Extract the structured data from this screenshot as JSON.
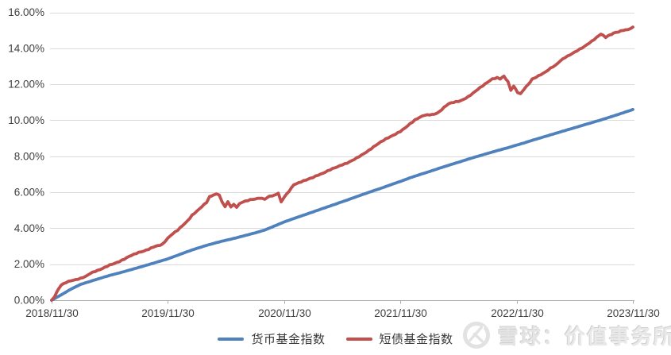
{
  "watermark": {
    "brand": "雪球：",
    "name": "价值事务所",
    "logo_icon": "xueqiu-circle-logo"
  },
  "colors": {
    "background": "#FFFFFF",
    "grid": "#DADADA",
    "axis": "#ABABAB",
    "tick_text": "#3F3F3F",
    "money_fund_blue": "#4F81BD",
    "short_bond_red": "#C0504D",
    "watermark_gray": "#E4E4E4"
  },
  "chart_data": {
    "type": "line",
    "title": "",
    "xlabel": "",
    "ylabel": "",
    "grid": "horizontal",
    "legend_position": "bottom-center",
    "y_axis": {
      "min": 0,
      "max": 16,
      "step": 2,
      "unit": "%",
      "ticks": [
        "0.00%",
        "2.00%",
        "4.00%",
        "6.00%",
        "8.00%",
        "10.00%",
        "12.00%",
        "14.00%",
        "16.00%"
      ]
    },
    "x_axis": {
      "unit": "months_since_2018-11-30",
      "total_months": 60,
      "tick_positions": [
        0,
        12,
        24,
        36,
        48,
        60
      ],
      "ticks": [
        "2018/11/30",
        "2019/11/30",
        "2020/11/30",
        "2021/11/30",
        "2022/11/30",
        "2023/11/30"
      ]
    },
    "legend": [
      "货币基金指数",
      "短债基金指数"
    ],
    "series": [
      {
        "id": "money-fund-index",
        "name": "货币基金指数",
        "color": "#4F81BD",
        "points": [
          [
            0,
            0.0
          ],
          [
            1,
            0.3
          ],
          [
            2,
            0.62
          ],
          [
            3,
            0.88
          ],
          [
            4,
            1.05
          ],
          [
            5,
            1.22
          ],
          [
            6,
            1.38
          ],
          [
            7,
            1.52
          ],
          [
            8,
            1.67
          ],
          [
            9,
            1.82
          ],
          [
            10,
            1.98
          ],
          [
            11,
            2.14
          ],
          [
            12,
            2.3
          ],
          [
            13,
            2.5
          ],
          [
            14,
            2.7
          ],
          [
            15,
            2.88
          ],
          [
            16,
            3.05
          ],
          [
            17,
            3.2
          ],
          [
            18,
            3.33
          ],
          [
            19,
            3.46
          ],
          [
            20,
            3.6
          ],
          [
            21,
            3.74
          ],
          [
            22,
            3.9
          ],
          [
            23,
            4.12
          ],
          [
            24,
            4.35
          ],
          [
            25,
            4.54
          ],
          [
            26,
            4.72
          ],
          [
            27,
            4.91
          ],
          [
            28,
            5.1
          ],
          [
            29,
            5.28
          ],
          [
            30,
            5.47
          ],
          [
            31,
            5.66
          ],
          [
            32,
            5.85
          ],
          [
            33,
            6.04
          ],
          [
            34,
            6.22
          ],
          [
            35,
            6.41
          ],
          [
            36,
            6.6
          ],
          [
            37,
            6.8
          ],
          [
            38,
            6.98
          ],
          [
            39,
            7.15
          ],
          [
            40,
            7.33
          ],
          [
            41,
            7.5
          ],
          [
            42,
            7.67
          ],
          [
            43,
            7.84
          ],
          [
            44,
            8.0
          ],
          [
            45,
            8.16
          ],
          [
            46,
            8.31
          ],
          [
            47,
            8.46
          ],
          [
            48,
            8.62
          ],
          [
            49,
            8.78
          ],
          [
            50,
            8.95
          ],
          [
            51,
            9.11
          ],
          [
            52,
            9.27
          ],
          [
            53,
            9.43
          ],
          [
            54,
            9.59
          ],
          [
            55,
            9.75
          ],
          [
            56,
            9.91
          ],
          [
            57,
            10.07
          ],
          [
            58,
            10.24
          ],
          [
            59,
            10.42
          ],
          [
            60,
            10.6
          ]
        ]
      },
      {
        "id": "short-bond-fund-index",
        "name": "短债基金指数",
        "color": "#C0504D",
        "points": [
          [
            0,
            0.0
          ],
          [
            0.3,
            0.2
          ],
          [
            0.7,
            0.62
          ],
          [
            1,
            0.85
          ],
          [
            1.5,
            1.0
          ],
          [
            2,
            1.1
          ],
          [
            2.5,
            1.15
          ],
          [
            3,
            1.22
          ],
          [
            3.5,
            1.32
          ],
          [
            4,
            1.5
          ],
          [
            4.5,
            1.62
          ],
          [
            5,
            1.72
          ],
          [
            5.5,
            1.84
          ],
          [
            6,
            1.96
          ],
          [
            6.5,
            2.05
          ],
          [
            7,
            2.16
          ],
          [
            7.5,
            2.3
          ],
          [
            8,
            2.45
          ],
          [
            8.5,
            2.56
          ],
          [
            9,
            2.66
          ],
          [
            9.5,
            2.73
          ],
          [
            10,
            2.84
          ],
          [
            10.5,
            2.97
          ],
          [
            11,
            3.05
          ],
          [
            11.4,
            3.08
          ],
          [
            12,
            3.45
          ],
          [
            12.5,
            3.7
          ],
          [
            13,
            3.9
          ],
          [
            13.5,
            4.15
          ],
          [
            14,
            4.4
          ],
          [
            14.5,
            4.72
          ],
          [
            15,
            4.95
          ],
          [
            15.5,
            5.2
          ],
          [
            16,
            5.45
          ],
          [
            16.3,
            5.75
          ],
          [
            16.7,
            5.85
          ],
          [
            17,
            5.9
          ],
          [
            17.3,
            5.87
          ],
          [
            17.6,
            5.45
          ],
          [
            17.9,
            5.2
          ],
          [
            18.2,
            5.45
          ],
          [
            18.5,
            5.2
          ],
          [
            18.8,
            5.32
          ],
          [
            19.1,
            5.18
          ],
          [
            19.4,
            5.35
          ],
          [
            19.7,
            5.45
          ],
          [
            20,
            5.5
          ],
          [
            20.5,
            5.58
          ],
          [
            21,
            5.62
          ],
          [
            21.5,
            5.68
          ],
          [
            22,
            5.62
          ],
          [
            22.5,
            5.78
          ],
          [
            23,
            5.82
          ],
          [
            23.4,
            5.95
          ],
          [
            23.7,
            5.45
          ],
          [
            24,
            5.72
          ],
          [
            24.5,
            6.05
          ],
          [
            25,
            6.42
          ],
          [
            25.5,
            6.52
          ],
          [
            26,
            6.62
          ],
          [
            26.5,
            6.72
          ],
          [
            27,
            6.82
          ],
          [
            27.5,
            6.95
          ],
          [
            28,
            7.05
          ],
          [
            28.5,
            7.18
          ],
          [
            29,
            7.3
          ],
          [
            29.5,
            7.4
          ],
          [
            30,
            7.52
          ],
          [
            30.5,
            7.62
          ],
          [
            31,
            7.75
          ],
          [
            31.5,
            7.9
          ],
          [
            32,
            8.05
          ],
          [
            32.5,
            8.22
          ],
          [
            33,
            8.42
          ],
          [
            33.5,
            8.62
          ],
          [
            34,
            8.8
          ],
          [
            34.5,
            8.95
          ],
          [
            35,
            9.08
          ],
          [
            35.5,
            9.22
          ],
          [
            36,
            9.38
          ],
          [
            36.5,
            9.58
          ],
          [
            37,
            9.8
          ],
          [
            37.5,
            10.0
          ],
          [
            38,
            10.15
          ],
          [
            38.5,
            10.28
          ],
          [
            39,
            10.3
          ],
          [
            39.5,
            10.33
          ],
          [
            40,
            10.45
          ],
          [
            40.5,
            10.7
          ],
          [
            41,
            10.92
          ],
          [
            41.5,
            11.0
          ],
          [
            42,
            11.05
          ],
          [
            42.5,
            11.15
          ],
          [
            43,
            11.3
          ],
          [
            43.5,
            11.5
          ],
          [
            44,
            11.72
          ],
          [
            44.5,
            11.92
          ],
          [
            45,
            12.12
          ],
          [
            45.5,
            12.3
          ],
          [
            46,
            12.36
          ],
          [
            46.3,
            12.3
          ],
          [
            46.7,
            12.45
          ],
          [
            47.1,
            12.15
          ],
          [
            47.4,
            11.68
          ],
          [
            47.7,
            11.9
          ],
          [
            48.1,
            11.55
          ],
          [
            48.4,
            11.46
          ],
          [
            48.8,
            11.75
          ],
          [
            49.2,
            12.0
          ],
          [
            49.6,
            12.27
          ],
          [
            50,
            12.4
          ],
          [
            50.5,
            12.55
          ],
          [
            51,
            12.7
          ],
          [
            51.5,
            12.9
          ],
          [
            52,
            13.05
          ],
          [
            52.5,
            13.3
          ],
          [
            53,
            13.5
          ],
          [
            53.5,
            13.65
          ],
          [
            54,
            13.8
          ],
          [
            54.5,
            13.95
          ],
          [
            55,
            14.1
          ],
          [
            55.5,
            14.3
          ],
          [
            56,
            14.5
          ],
          [
            56.7,
            14.8
          ],
          [
            57.2,
            14.62
          ],
          [
            57.6,
            14.72
          ],
          [
            58,
            14.85
          ],
          [
            58.5,
            14.92
          ],
          [
            59,
            15.02
          ],
          [
            59.5,
            15.05
          ],
          [
            60,
            15.18
          ]
        ]
      }
    ]
  }
}
